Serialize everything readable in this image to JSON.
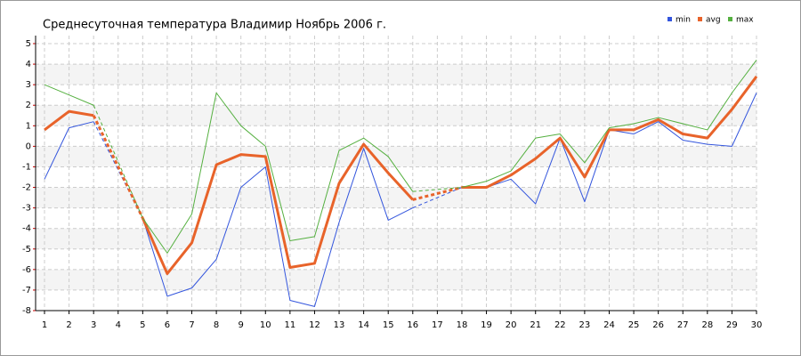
{
  "chart_data": {
    "type": "line",
    "title": "Среднесуточная температура Владимир  Ноябрь 2006 г.",
    "x": [
      1,
      2,
      3,
      4,
      5,
      6,
      7,
      8,
      9,
      10,
      11,
      12,
      13,
      14,
      15,
      16,
      17,
      18,
      19,
      20,
      21,
      22,
      23,
      24,
      25,
      26,
      27,
      28,
      29,
      30
    ],
    "xlim": [
      1,
      30
    ],
    "xticks": [
      1,
      2,
      3,
      4,
      5,
      6,
      7,
      8,
      9,
      10,
      11,
      12,
      13,
      14,
      15,
      16,
      17,
      18,
      19,
      20,
      21,
      22,
      23,
      24,
      25,
      26,
      27,
      28,
      29,
      30
    ],
    "ylim": [
      -8,
      5
    ],
    "yticks": [
      -8,
      -7,
      -6,
      -5,
      -4,
      -3,
      -2,
      -1,
      0,
      1,
      2,
      3,
      4,
      5
    ],
    "grid": true,
    "legend": "top-right",
    "series": [
      {
        "name": "min",
        "color": "#3355dd",
        "values": [
          -1.6,
          0.9,
          1.2,
          null,
          -3.5,
          -7.3,
          -6.9,
          -5.5,
          -2.0,
          -1.0,
          -7.5,
          -7.8,
          -3.7,
          -0.1,
          -3.6,
          -3.0,
          null,
          -2.0,
          -2.0,
          -1.6,
          -2.8,
          0.4,
          -2.7,
          0.8,
          0.6,
          1.2,
          0.3,
          0.1,
          0.0,
          2.6
        ]
      },
      {
        "name": "avg",
        "color": "#e8632a",
        "values": [
          0.8,
          1.7,
          1.5,
          null,
          -3.5,
          -6.2,
          -4.7,
          -0.9,
          -0.4,
          -0.5,
          -5.9,
          -5.7,
          -1.8,
          0.1,
          -1.3,
          -2.6,
          null,
          -2.0,
          -2.0,
          -1.4,
          -0.6,
          0.4,
          -1.5,
          0.8,
          0.8,
          1.3,
          0.6,
          0.4,
          1.8,
          3.4
        ]
      },
      {
        "name": "max",
        "color": "#55b040",
        "values": [
          3.0,
          2.5,
          2.0,
          null,
          -3.5,
          -5.2,
          -3.3,
          2.6,
          1.0,
          0.0,
          -4.6,
          -4.4,
          -0.2,
          0.4,
          -0.5,
          -2.2,
          null,
          -2.0,
          -1.7,
          -1.2,
          0.4,
          0.6,
          -0.8,
          0.9,
          1.1,
          1.4,
          1.1,
          0.8,
          2.6,
          4.2
        ]
      }
    ]
  }
}
